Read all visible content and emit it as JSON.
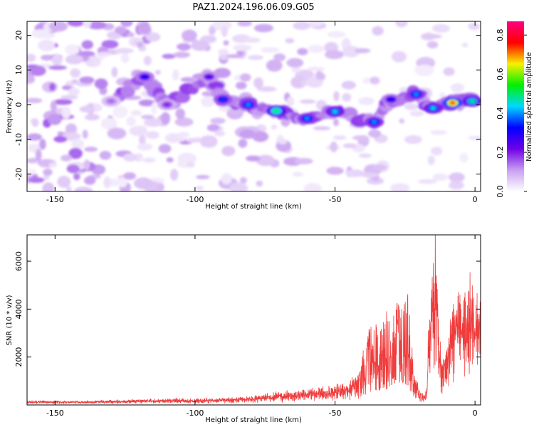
{
  "title": "PAZ1.2024.196.06.09.G05",
  "chart_data": [
    {
      "type": "heatmap",
      "xlabel": "Height of straight line (km)",
      "ylabel": "Frequency (Hz)",
      "xlim": [
        -160,
        2
      ],
      "ylim": [
        -25,
        24
      ],
      "xticks": [
        -150,
        -100,
        -50,
        0
      ],
      "xtick_labels": [
        "-150",
        "-100",
        "-50",
        "0"
      ],
      "yticks": [
        -20,
        -10,
        0,
        10,
        20
      ],
      "ytick_labels": [
        "-20",
        "-10",
        "0",
        "10",
        "20"
      ],
      "colorbar": {
        "label": "Normalized spectral amplitude",
        "range": [
          0,
          0.87
        ],
        "ticks": [
          0.0,
          0.2,
          0.4,
          0.6,
          0.8
        ],
        "tick_labels": [
          "0.0",
          "0.2",
          "0.4",
          "0.6",
          "0.8"
        ],
        "colormap": [
          "#ffffff",
          "#c8a0f0",
          "#7000e8",
          "#0000ff",
          "#00d8ff",
          "#00f000",
          "#f8f000",
          "#ff0000",
          "#ff0080"
        ]
      },
      "ridge": [
        {
          "x": -130,
          "y": 1,
          "amp": 0.15
        },
        {
          "x": -118,
          "y": 8,
          "amp": 0.3
        },
        {
          "x": -110,
          "y": 0,
          "amp": 0.2
        },
        {
          "x": -95,
          "y": 8,
          "amp": 0.25
        },
        {
          "x": -90,
          "y": 1.5,
          "amp": 0.35
        },
        {
          "x": -81,
          "y": 0,
          "amp": 0.4
        },
        {
          "x": -71,
          "y": -1.8,
          "amp": 0.55
        },
        {
          "x": -60,
          "y": -4,
          "amp": 0.4
        },
        {
          "x": -50,
          "y": -2,
          "amp": 0.45
        },
        {
          "x": -36,
          "y": -5,
          "amp": 0.4
        },
        {
          "x": -30,
          "y": 1.5,
          "amp": 0.3
        },
        {
          "x": -21,
          "y": 3,
          "amp": 0.4
        },
        {
          "x": -15,
          "y": -1,
          "amp": 0.45
        },
        {
          "x": -8,
          "y": 0.5,
          "amp": 0.8
        },
        {
          "x": -1,
          "y": 1,
          "amp": 0.5
        }
      ]
    },
    {
      "type": "line",
      "xlabel": "Height of straight line (km)",
      "ylabel": "SNR (10 * v/v)",
      "xlim": [
        -160,
        2
      ],
      "ylim": [
        0,
        7100
      ],
      "xticks": [
        -150,
        -100,
        -50,
        0
      ],
      "xtick_labels": [
        "-150",
        "-100",
        "-50",
        "0"
      ],
      "yticks": [
        2000,
        4000,
        6000
      ],
      "ytick_labels": [
        "2000",
        "4000",
        "6000"
      ],
      "color": "#f03c3c",
      "x": [
        -160,
        -150,
        -140,
        -130,
        -120,
        -110,
        -100,
        -90,
        -80,
        -75,
        -70,
        -65,
        -60,
        -55,
        -50,
        -45,
        -42,
        -40,
        -38,
        -36,
        -34,
        -32,
        -30,
        -28,
        -26,
        -24,
        -22,
        -20,
        -18,
        -17,
        -16,
        -15,
        -14,
        -13,
        -12,
        -10,
        -8,
        -6,
        -4,
        -2,
        0,
        2
      ],
      "y": [
        150,
        150,
        150,
        160,
        200,
        220,
        220,
        250,
        300,
        380,
        450,
        480,
        560,
        600,
        650,
        800,
        1200,
        2300,
        3300,
        3600,
        3000,
        4200,
        3500,
        4500,
        4000,
        5000,
        1800,
        700,
        400,
        2000,
        3800,
        5400,
        6900,
        3000,
        1500,
        2200,
        3600,
        4200,
        3800,
        4400,
        3800,
        4500
      ]
    }
  ]
}
